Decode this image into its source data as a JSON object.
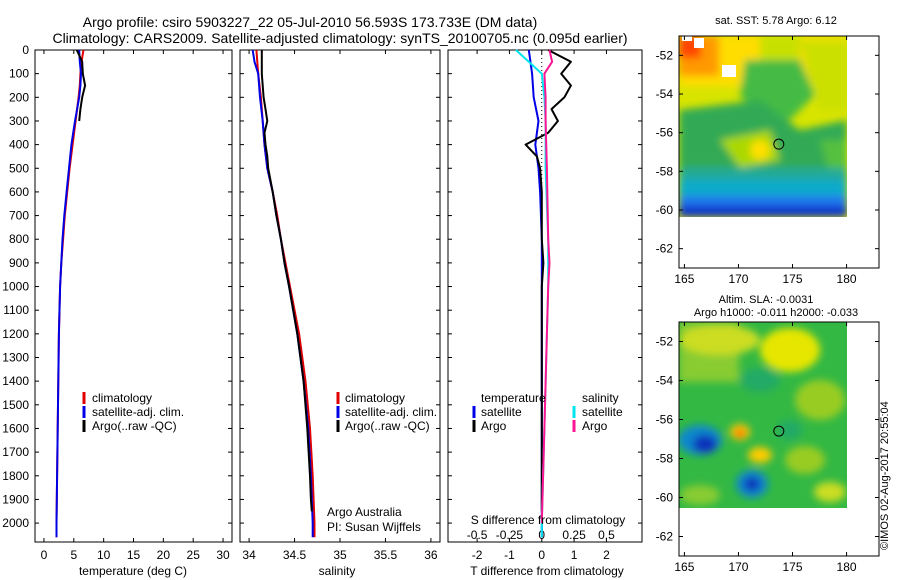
{
  "header": {
    "line1": "Argo profile: csiro 5903227_22 05-Jul-2010 56.593S 173.733E (DM data)",
    "line2": "Climatology: CARS2009. Satellite-adjusted climatology: synTS_20100705.nc (0.095d earlier)"
  },
  "credit": "©IMOS 02-Aug-2017 20:55:04",
  "colors": {
    "clim": "#e00000",
    "sat": "#0000e6",
    "argo": "#000000",
    "sal_sat": "#00e5ee",
    "sal_argo": "#ff1493"
  },
  "depth_axis": {
    "ticks": [
      0,
      100,
      200,
      300,
      400,
      500,
      600,
      700,
      800,
      900,
      1000,
      1100,
      1200,
      1300,
      1400,
      1500,
      1600,
      1700,
      1800,
      1900,
      2000
    ],
    "ylim": [
      0,
      2080
    ]
  },
  "chart_data": [
    {
      "type": "line",
      "title": "",
      "xlabel": "temperature (deg C)",
      "ylabel": "depth",
      "xlim": [
        -1.5,
        31.5
      ],
      "ylim": [
        0,
        2080
      ],
      "xticks": [
        0,
        5,
        10,
        15,
        20,
        25,
        30
      ],
      "legend": [
        "climatology",
        "satellite-adj. clim.",
        "Argo(..raw -QC)"
      ],
      "series": [
        {
          "name": "climatology",
          "depth": [
            0,
            50,
            100,
            150,
            200,
            300,
            400,
            500,
            600,
            700,
            800,
            900,
            1000,
            1200,
            1400,
            1600,
            1800,
            2000,
            2060
          ],
          "values": [
            6.6,
            6.3,
            6.1,
            6.0,
            5.8,
            5.3,
            4.8,
            4.3,
            3.9,
            3.5,
            3.2,
            2.9,
            2.7,
            2.5,
            2.4,
            2.3,
            2.2,
            2.1,
            2.1
          ]
        },
        {
          "name": "satellite-adj. clim.",
          "depth": [
            0,
            50,
            100,
            150,
            200,
            300,
            400,
            500,
            600,
            700,
            800,
            900,
            1000,
            1200,
            1400,
            1600,
            1800,
            2000,
            2060
          ],
          "values": [
            5.9,
            6.0,
            6.2,
            6.1,
            5.9,
            5.2,
            4.6,
            4.2,
            3.8,
            3.4,
            3.1,
            2.9,
            2.7,
            2.5,
            2.4,
            2.3,
            2.2,
            2.1,
            2.1
          ]
        },
        {
          "name": "Argo(..raw -QC)",
          "depth": [
            0,
            50,
            100,
            150,
            200,
            250,
            300
          ],
          "values": [
            5.5,
            6.4,
            6.5,
            6.9,
            6.4,
            6.1,
            5.9
          ]
        }
      ]
    },
    {
      "type": "line",
      "title": "",
      "xlabel": "salinity",
      "ylabel": "",
      "xlim": [
        33.9,
        36.1
      ],
      "ylim": [
        0,
        2080
      ],
      "xticks": [
        "34",
        "34.5",
        "35",
        "35.5",
        "36"
      ],
      "legend": [
        "climatology",
        "satellite-adj. clim.",
        "Argo(..raw -QC)"
      ],
      "annotation": [
        "Argo Australia",
        "PI: Susan Wijffels"
      ],
      "series": [
        {
          "name": "climatology",
          "depth": [
            0,
            100,
            200,
            300,
            400,
            500,
            600,
            700,
            800,
            900,
            1000,
            1200,
            1400,
            1600,
            1800,
            2000,
            2060
          ],
          "values": [
            34.08,
            34.1,
            34.13,
            34.15,
            34.17,
            34.2,
            34.26,
            34.31,
            34.35,
            34.4,
            34.45,
            34.55,
            34.62,
            34.67,
            34.7,
            34.72,
            34.72
          ]
        },
        {
          "name": "satellite-adj. clim.",
          "depth": [
            0,
            50,
            100,
            200,
            300,
            400,
            500,
            600,
            700,
            800,
            900,
            1000,
            1200,
            1400,
            1600,
            1800,
            2000,
            2060
          ],
          "values": [
            34.04,
            34.06,
            34.1,
            34.12,
            34.15,
            34.17,
            34.2,
            34.26,
            34.3,
            34.35,
            34.39,
            34.44,
            34.53,
            34.6,
            34.65,
            34.68,
            34.7,
            34.7
          ]
        },
        {
          "name": "Argo(..raw -QC)",
          "depth": [
            0,
            50,
            100,
            150,
            200,
            250,
            300,
            350,
            400,
            450,
            500,
            600,
            700,
            800,
            900,
            1000,
            1200,
            1400,
            1600,
            1800,
            1900,
            1950
          ],
          "values": [
            34.14,
            34.14,
            34.14,
            34.15,
            34.16,
            34.18,
            34.2,
            34.17,
            34.18,
            34.2,
            34.21,
            34.26,
            34.3,
            34.35,
            34.39,
            34.44,
            34.53,
            34.6,
            34.64,
            34.67,
            34.68,
            34.69
          ]
        }
      ]
    },
    {
      "type": "line",
      "title": "",
      "xlabel": "T difference from climatology",
      "xlabel_top": "S difference from climatology",
      "xlim": [
        -2.9,
        3.1
      ],
      "ylim": [
        0,
        2080
      ],
      "xticks": [
        "-2",
        "-1",
        "0",
        "1",
        "2"
      ],
      "xticks_top": [
        "-0.5",
        "-0.25",
        "0",
        "0.25",
        "0.5"
      ],
      "legend_temperature": [
        "temperature",
        "satellite",
        "Argo"
      ],
      "legend_salinity": [
        "salinity",
        "satellite",
        "Argo"
      ],
      "series": [
        {
          "name": "temperature satellite",
          "depth": [
            0,
            100,
            200,
            300,
            400,
            500,
            600,
            800,
            1000,
            1200,
            1400,
            1600,
            1800,
            2000,
            2060
          ],
          "values": [
            -0.4,
            -0.3,
            -0.25,
            -0.1,
            -0.2,
            -0.1,
            -0.05,
            0,
            0,
            0,
            0,
            0,
            0,
            0,
            0
          ]
        },
        {
          "name": "temperature Argo",
          "depth": [
            0,
            50,
            100,
            150,
            200,
            250,
            300,
            350,
            400,
            450,
            500,
            600,
            700,
            800,
            900,
            1000,
            1200,
            1400,
            1600,
            1800,
            1900,
            1950
          ],
          "values": [
            0.2,
            0.9,
            0.6,
            0.9,
            0.7,
            0.3,
            0.5,
            0.2,
            -0.5,
            -0.15,
            -0.05,
            0,
            0,
            0,
            0.05,
            0,
            0,
            0,
            0,
            0,
            0,
            0
          ]
        },
        {
          "name": "salinity satellite",
          "depth": [
            0,
            50,
            100,
            200,
            300,
            500,
            800,
            1000,
            1200,
            1600,
            2000,
            2060
          ],
          "values": [
            -0.2,
            -0.1,
            0,
            0.02,
            0.03,
            0.03,
            0.05,
            0.05,
            0.04,
            0.02,
            0,
            0
          ]
        },
        {
          "name": "salinity Argo",
          "depth": [
            0,
            50,
            100,
            200,
            300,
            500,
            800,
            900,
            1000,
            1200,
            1600,
            2000
          ],
          "values": [
            0.06,
            0.08,
            0.02,
            0.03,
            0.03,
            0.04,
            0.05,
            0.06,
            0.05,
            0.04,
            0.02,
            0
          ]
        }
      ]
    },
    {
      "type": "heatmap",
      "title": "sat. SST: 5.78 Argo: 6.12",
      "xlim": [
        164.5,
        183
      ],
      "ylim": [
        -63,
        -51
      ],
      "xticks": [
        "165",
        "170",
        "175",
        "180"
      ],
      "yticks": [
        "-52",
        "-54",
        "-56",
        "-58",
        "-60",
        "-62"
      ],
      "marker": {
        "lon": 173.733,
        "lat": -56.593
      }
    },
    {
      "type": "heatmap",
      "title": "Altim. SLA: -0.0031",
      "subtitle": "Argo h1000: -0.011 h2000: -0.033",
      "xlim": [
        164.5,
        183
      ],
      "ylim": [
        -63,
        -51
      ],
      "xticks": [
        "165",
        "170",
        "175",
        "180"
      ],
      "yticks": [
        "-52",
        "-54",
        "-56",
        "-58",
        "-60",
        "-62"
      ],
      "marker": {
        "lon": 173.733,
        "lat": -56.593
      }
    }
  ]
}
